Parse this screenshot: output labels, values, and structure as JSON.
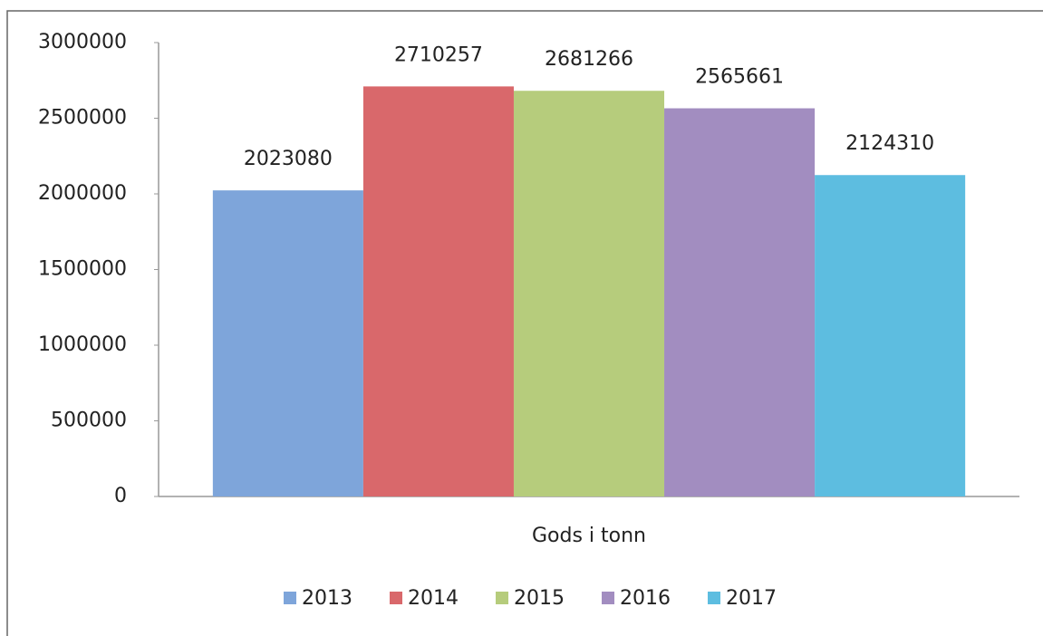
{
  "chart_data": {
    "type": "bar",
    "categories": [
      "Gods i tonn"
    ],
    "series": [
      {
        "name": "2013",
        "color": "#7ea5da",
        "values": [
          2023080
        ]
      },
      {
        "name": "2014",
        "color": "#d9686b",
        "values": [
          2710257
        ]
      },
      {
        "name": "2015",
        "color": "#b6cc7c",
        "values": [
          2681266
        ]
      },
      {
        "name": "2016",
        "color": "#a28dc0",
        "values": [
          2565661
        ]
      },
      {
        "name": "2017",
        "color": "#5dbde0",
        "values": [
          2124310
        ]
      }
    ],
    "ylim": [
      0,
      3000000
    ],
    "yticks": [
      0,
      500000,
      1000000,
      1500000,
      2000000,
      2500000,
      3000000
    ],
    "grid": false,
    "legend": "bottom"
  }
}
